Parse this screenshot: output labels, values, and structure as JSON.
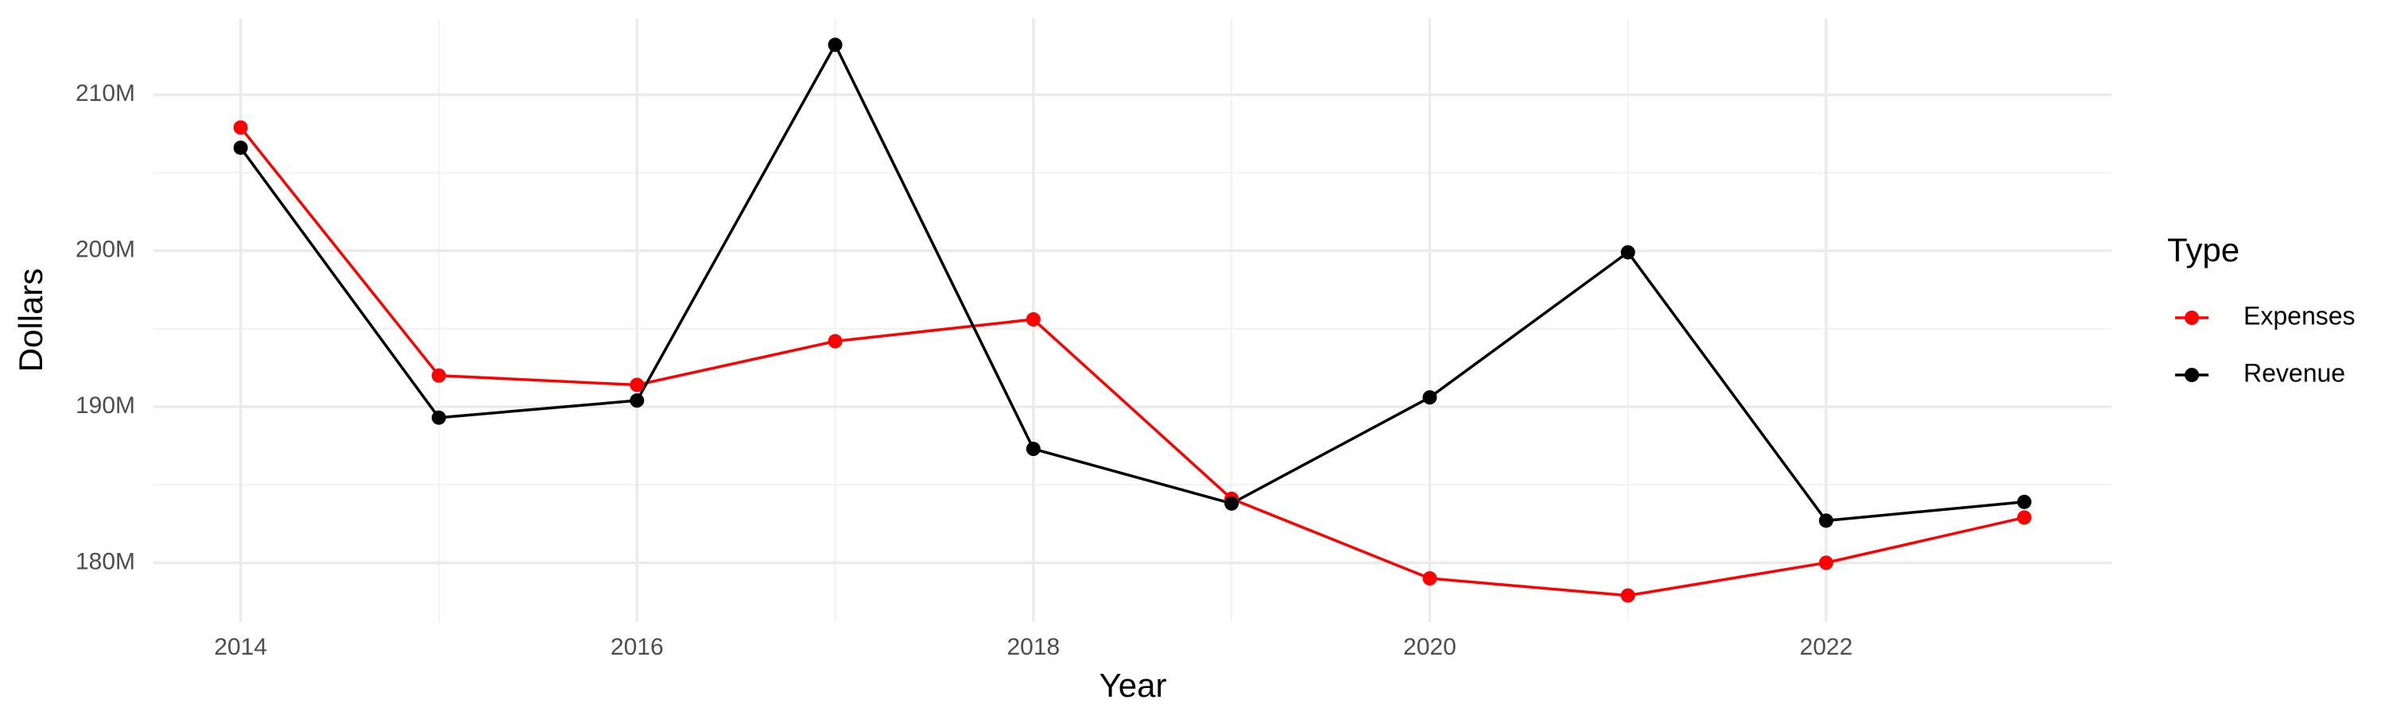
{
  "chart_data": {
    "type": "line",
    "x_label": "Year",
    "y_label": "Dollars",
    "legend_title": "Type",
    "legend_position": "right",
    "grid": true,
    "x": [
      2014,
      2015,
      2016,
      2017,
      2018,
      2019,
      2020,
      2021,
      2022,
      2023
    ],
    "series": [
      {
        "name": "Expenses",
        "color": "#ff0000",
        "values": [
          207900000,
          192000000,
          191400000,
          194200000,
          195600000,
          184100000,
          179000000,
          177900000,
          180000000,
          182900000
        ]
      },
      {
        "name": "Revenue",
        "color": "#000000",
        "values": [
          206600000,
          189300000,
          190400000,
          213200000,
          187300000,
          183800000,
          190600000,
          199900000,
          182700000,
          183900000
        ]
      }
    ],
    "xlim": [
      2013.56,
      2023.44
    ],
    "ylim": [
      176200000,
      214900000
    ],
    "xticks": [
      2014,
      2016,
      2018,
      2020,
      2022
    ],
    "yticks": [
      {
        "value": 180000000,
        "label": "180M"
      },
      {
        "value": 190000000,
        "label": "190M"
      },
      {
        "value": 200000000,
        "label": "200M"
      },
      {
        "value": 210000000,
        "label": "210M"
      }
    ]
  }
}
